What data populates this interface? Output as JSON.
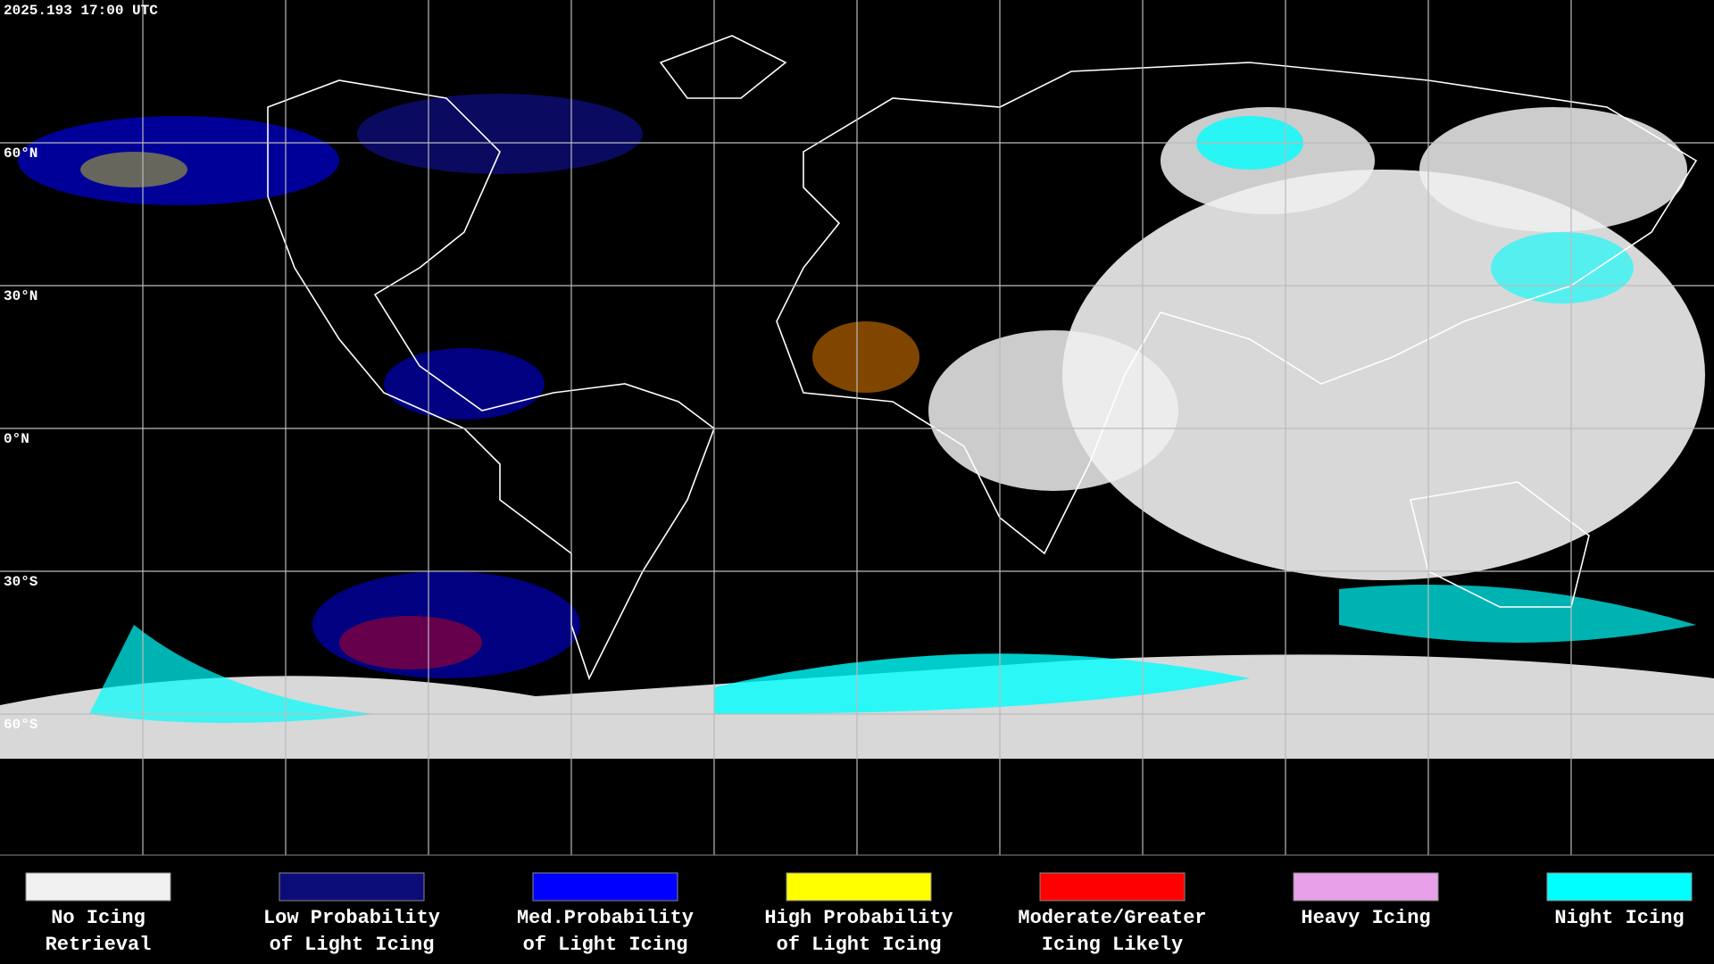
{
  "timestamp": "2025.193 17:00 UTC",
  "latitude_labels": [
    "60°N",
    "30°N",
    "0°N",
    "30°S",
    "60°S"
  ],
  "legend": [
    {
      "lines": [
        "No Icing",
        "Retrieval"
      ],
      "color": "#f0f0f0"
    },
    {
      "lines": [
        "Low Probability",
        "of Light Icing"
      ],
      "color": "#0c0c78"
    },
    {
      "lines": [
        "Med.Probability",
        "of Light Icing"
      ],
      "color": "#0000ff"
    },
    {
      "lines": [
        "High Probability",
        "of Light Icing"
      ],
      "color": "#ffff00"
    },
    {
      "lines": [
        "Moderate/Greater",
        "Icing Likely"
      ],
      "color": "#ff0000"
    },
    {
      "lines": [
        "Heavy Icing"
      ],
      "color": "#e8a0e8"
    },
    {
      "lines": [
        "Night Icing"
      ],
      "color": "#00ffff"
    }
  ]
}
